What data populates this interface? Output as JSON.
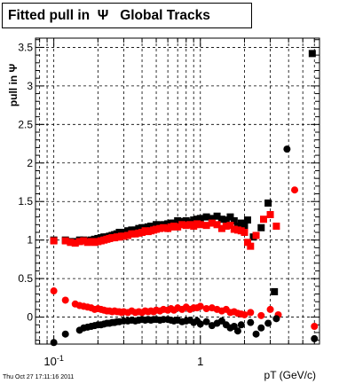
{
  "chart_data": {
    "type": "scatter",
    "title": "Fitted pull in  Ψ   Global Tracks",
    "xlabel": "pT (GeV/c)",
    "ylabel": "pull in Ψ",
    "xscale": "log",
    "xlim": [
      0.075,
      6.5
    ],
    "ylim": [
      -0.35,
      3.62
    ],
    "x_tick_labels": [
      {
        "value": 0.1,
        "label": "10",
        "exp": "-1"
      },
      {
        "value": 1,
        "label": "1",
        "exp": ""
      }
    ],
    "y_ticks": [
      0,
      0.5,
      1,
      1.5,
      2,
      2.5,
      3,
      3.5
    ],
    "y_tick_labels": [
      "0",
      "0.5",
      "1",
      "1.5",
      "2",
      "2.5",
      "3",
      "3.5"
    ],
    "grid": true,
    "series": [
      {
        "color": "#000000",
        "marker": "square",
        "x": [
          0.1,
          0.12,
          0.13,
          0.14,
          0.15,
          0.16,
          0.17,
          0.18,
          0.19,
          0.2,
          0.21,
          0.22,
          0.23,
          0.24,
          0.25,
          0.26,
          0.27,
          0.28,
          0.29,
          0.3,
          0.32,
          0.34,
          0.36,
          0.38,
          0.4,
          0.42,
          0.44,
          0.46,
          0.48,
          0.5,
          0.53,
          0.56,
          0.6,
          0.63,
          0.66,
          0.7,
          0.75,
          0.8,
          0.85,
          0.9,
          0.95,
          1.0,
          1.1,
          1.2,
          1.3,
          1.4,
          1.5,
          1.6,
          1.7,
          1.8,
          1.9,
          2.0,
          2.1,
          2.3,
          2.6,
          2.9,
          3.2,
          5.8
        ],
        "y": [
          1.0,
          1.0,
          0.98,
          0.98,
          1.0,
          1.0,
          0.99,
          1.0,
          1.01,
          1.02,
          1.03,
          1.04,
          1.04,
          1.05,
          1.06,
          1.07,
          1.08,
          1.1,
          1.09,
          1.1,
          1.12,
          1.13,
          1.13,
          1.15,
          1.16,
          1.16,
          1.17,
          1.18,
          1.17,
          1.2,
          1.19,
          1.2,
          1.21,
          1.22,
          1.22,
          1.25,
          1.24,
          1.25,
          1.23,
          1.26,
          1.27,
          1.28,
          1.3,
          1.28,
          1.31,
          1.27,
          1.26,
          1.3,
          1.25,
          1.18,
          1.22,
          1.17,
          1.26,
          1.04,
          1.16,
          1.48,
          0.33,
          3.42
        ]
      },
      {
        "color": "#ff0000",
        "marker": "square",
        "x": [
          0.1,
          0.12,
          0.13,
          0.14,
          0.15,
          0.16,
          0.17,
          0.18,
          0.19,
          0.2,
          0.21,
          0.22,
          0.23,
          0.24,
          0.25,
          0.26,
          0.27,
          0.28,
          0.29,
          0.3,
          0.32,
          0.34,
          0.36,
          0.38,
          0.4,
          0.42,
          0.44,
          0.46,
          0.48,
          0.5,
          0.53,
          0.56,
          0.6,
          0.63,
          0.66,
          0.7,
          0.75,
          0.8,
          0.85,
          0.9,
          0.95,
          1.0,
          1.1,
          1.2,
          1.3,
          1.4,
          1.5,
          1.6,
          1.7,
          1.8,
          1.9,
          2.0,
          2.1,
          2.2,
          2.4,
          2.7,
          3.0,
          3.3
        ],
        "y": [
          0.99,
          0.99,
          0.97,
          0.96,
          0.98,
          0.99,
          0.97,
          0.98,
          0.97,
          0.98,
          0.99,
          1.0,
          1.01,
          1.02,
          1.03,
          1.03,
          1.04,
          1.04,
          1.05,
          1.05,
          1.06,
          1.08,
          1.08,
          1.09,
          1.1,
          1.12,
          1.11,
          1.12,
          1.13,
          1.14,
          1.15,
          1.16,
          1.15,
          1.17,
          1.18,
          1.17,
          1.2,
          1.19,
          1.2,
          1.18,
          1.21,
          1.2,
          1.19,
          1.22,
          1.2,
          1.15,
          1.18,
          1.19,
          1.14,
          1.13,
          1.12,
          1.1,
          0.97,
          0.92,
          1.06,
          1.27,
          1.33,
          1.18
        ]
      },
      {
        "color": "#ff0000",
        "marker": "circle",
        "x": [
          0.1,
          0.12,
          0.14,
          0.15,
          0.16,
          0.17,
          0.18,
          0.19,
          0.2,
          0.21,
          0.22,
          0.23,
          0.24,
          0.25,
          0.26,
          0.27,
          0.28,
          0.29,
          0.3,
          0.32,
          0.34,
          0.36,
          0.38,
          0.4,
          0.42,
          0.44,
          0.46,
          0.48,
          0.5,
          0.53,
          0.56,
          0.6,
          0.63,
          0.66,
          0.7,
          0.75,
          0.8,
          0.85,
          0.9,
          0.95,
          1.0,
          1.1,
          1.2,
          1.3,
          1.4,
          1.5,
          1.6,
          1.7,
          1.8,
          1.9,
          2.0,
          2.2,
          2.6,
          3.0,
          3.4,
          4.4,
          6.0
        ],
        "y": [
          0.34,
          0.22,
          0.17,
          0.15,
          0.14,
          0.13,
          0.12,
          0.1,
          0.11,
          0.1,
          0.09,
          0.08,
          0.08,
          0.07,
          0.08,
          0.07,
          0.07,
          0.06,
          0.07,
          0.06,
          0.08,
          0.06,
          0.07,
          0.06,
          0.08,
          0.07,
          0.08,
          0.07,
          0.09,
          0.08,
          0.1,
          0.09,
          0.11,
          0.09,
          0.12,
          0.1,
          0.13,
          0.1,
          0.12,
          0.12,
          0.14,
          0.11,
          0.12,
          0.1,
          0.08,
          0.1,
          0.06,
          0.07,
          0.05,
          0.04,
          0.03,
          0.06,
          0.02,
          0.1,
          0.03,
          1.65,
          -0.12
        ]
      },
      {
        "color": "#000000",
        "marker": "circle",
        "x": [
          0.1,
          0.12,
          0.15,
          0.16,
          0.17,
          0.18,
          0.19,
          0.2,
          0.21,
          0.22,
          0.23,
          0.24,
          0.25,
          0.26,
          0.27,
          0.28,
          0.3,
          0.32,
          0.34,
          0.36,
          0.38,
          0.4,
          0.42,
          0.44,
          0.46,
          0.48,
          0.5,
          0.53,
          0.56,
          0.6,
          0.63,
          0.66,
          0.7,
          0.75,
          0.8,
          0.85,
          0.9,
          0.95,
          1.0,
          1.1,
          1.2,
          1.3,
          1.4,
          1.5,
          1.6,
          1.7,
          1.8,
          1.9,
          2.2,
          2.4,
          2.6,
          2.9,
          3.3,
          3.9,
          6.0
        ],
        "y": [
          -0.33,
          -0.22,
          -0.17,
          -0.14,
          -0.13,
          -0.12,
          -0.11,
          -0.1,
          -0.1,
          -0.09,
          -0.08,
          -0.08,
          -0.07,
          -0.07,
          -0.06,
          -0.06,
          -0.05,
          -0.05,
          -0.04,
          -0.05,
          -0.04,
          -0.03,
          -0.04,
          -0.03,
          -0.04,
          -0.03,
          -0.03,
          -0.04,
          -0.03,
          -0.03,
          -0.04,
          -0.05,
          -0.04,
          -0.06,
          -0.05,
          -0.04,
          -0.07,
          -0.05,
          -0.09,
          -0.06,
          -0.11,
          -0.08,
          -0.05,
          -0.1,
          -0.14,
          -0.12,
          -0.18,
          -0.1,
          -0.07,
          -0.22,
          -0.14,
          -0.08,
          -0.02,
          2.18,
          -0.28
        ]
      }
    ]
  },
  "footer": {
    "timestamp": "Thu Oct 27 17:11:16 2011"
  }
}
